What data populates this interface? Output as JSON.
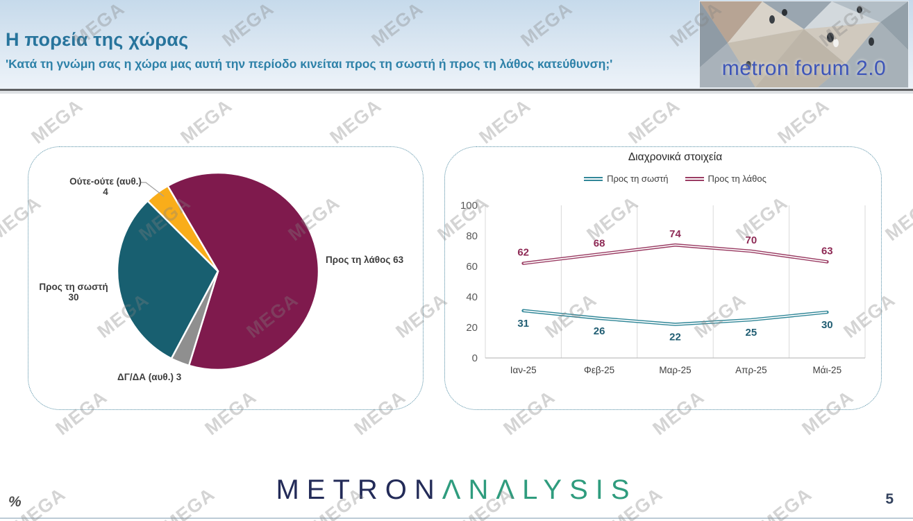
{
  "slide": {
    "watermark_text": "MEGA",
    "footer_symbol": "%",
    "page_number": "5"
  },
  "header": {
    "title": "Η πορεία της χώρας",
    "subtitle": "'Κατά τη γνώμη σας η χώρα μας αυτή την περίοδο κινείται προς τη σωστή ή προς τη λάθος κατεύθυνση;'",
    "logo_text": "metron forum 2.0"
  },
  "footer_logo": {
    "part1": "METRON",
    "part1_color": "#232b58",
    "part2": "ANALYSIS",
    "part2_display": "ΛNΛLYSIS",
    "part2_color": "#2f9c7e"
  },
  "chart_data": [
    {
      "type": "pie",
      "title": "",
      "start_angle_deg": 330,
      "slices": [
        {
          "label": "Προς τη λάθος",
          "value": 63,
          "color": "#7F1A4D"
        },
        {
          "label": "ΔΓ/ΔΑ (αυθ.)",
          "value": 3,
          "color": "#8F8F8F"
        },
        {
          "label": "Προς τη σωστή",
          "value": 30,
          "color": "#185F70"
        },
        {
          "label": "Ούτε-ούτε (αυθ.)",
          "value": 4,
          "color": "#F9AD1A"
        }
      ],
      "labels": {
        "right": "Προς τη λάθος 63",
        "left_line1": "Προς τη σωστή",
        "left_line2": "30",
        "top_line1": "Ούτε-ούτε (αυθ.)",
        "top_line2": "4",
        "bottom": "ΔΓ/ΔΑ (αυθ.) 3"
      }
    },
    {
      "type": "line",
      "title": "Διαχρονικά στοιχεία",
      "categories": [
        "Ιαν-25",
        "Φεβ-25",
        "Μαρ-25",
        "Απρ-25",
        "Μάι-25"
      ],
      "series": [
        {
          "name": "Προς τη σωστή",
          "values": [
            31,
            26,
            22,
            25,
            30
          ],
          "color": "#318798",
          "label_color": "#215E73",
          "label_position": "below"
        },
        {
          "name": "Προς τη λάθος",
          "values": [
            62,
            68,
            74,
            70,
            63
          ],
          "color": "#9A3C63",
          "label_color": "#8E2A55",
          "label_position": "above"
        }
      ],
      "ylim": [
        0,
        100
      ],
      "yticks": [
        0,
        20,
        40,
        60,
        80,
        100
      ],
      "legend_position": "top",
      "grid": "vertical",
      "axis_color": "#d9d9d9",
      "tick_label_color": "#595959",
      "category_label_color": "#404040"
    }
  ]
}
